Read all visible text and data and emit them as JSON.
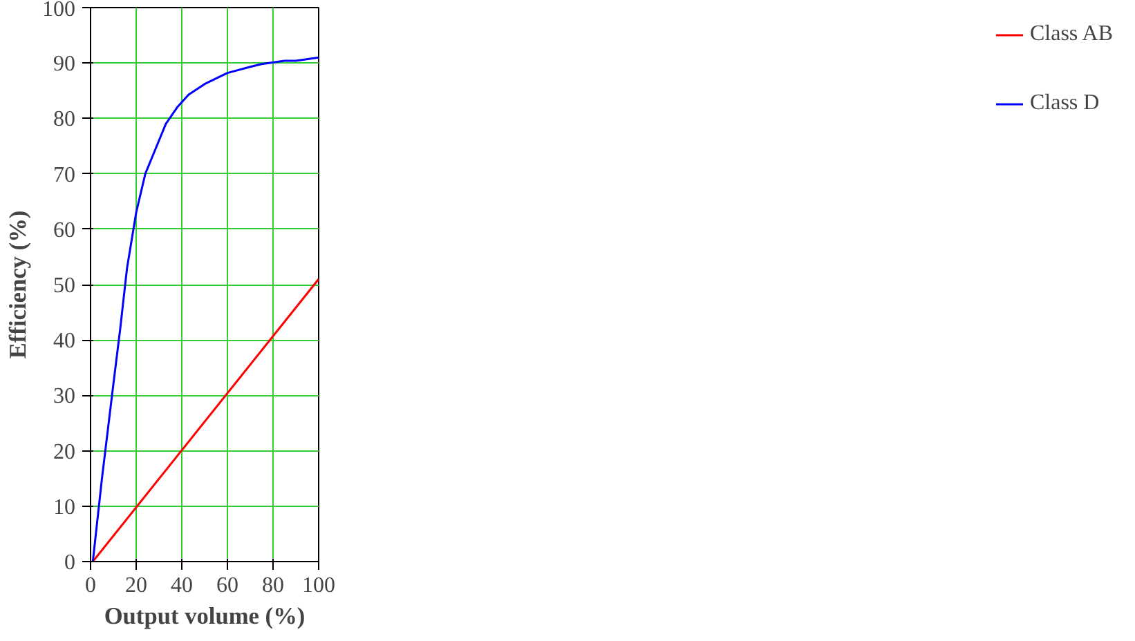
{
  "chart_data": {
    "type": "line",
    "xlabel": "Output volume (%)",
    "ylabel": "Efficiency (%)",
    "xlim": [
      0,
      100
    ],
    "ylim": [
      0,
      100
    ],
    "xticks": [
      0,
      20,
      40,
      60,
      80,
      100
    ],
    "yticks": [
      0,
      10,
      20,
      30,
      40,
      50,
      60,
      70,
      80,
      90,
      100
    ],
    "grid": true,
    "legend": "right",
    "marker": "none",
    "line_style": "solid",
    "series": [
      {
        "name": "Class AB",
        "color": "#ff0000",
        "x": [
          1,
          100
        ],
        "values": [
          0,
          51
        ]
      },
      {
        "name": "Class D",
        "color": "#0000ff",
        "x": [
          1,
          5,
          10,
          13,
          16,
          20,
          24,
          28,
          33,
          38,
          43,
          50,
          60,
          70,
          75,
          85,
          90,
          100
        ],
        "values": [
          0,
          15,
          32,
          42,
          53,
          63,
          70,
          74,
          79,
          82,
          84.3,
          86.2,
          88.2,
          89.3,
          89.8,
          90.4,
          90.4,
          91
        ]
      }
    ]
  }
}
